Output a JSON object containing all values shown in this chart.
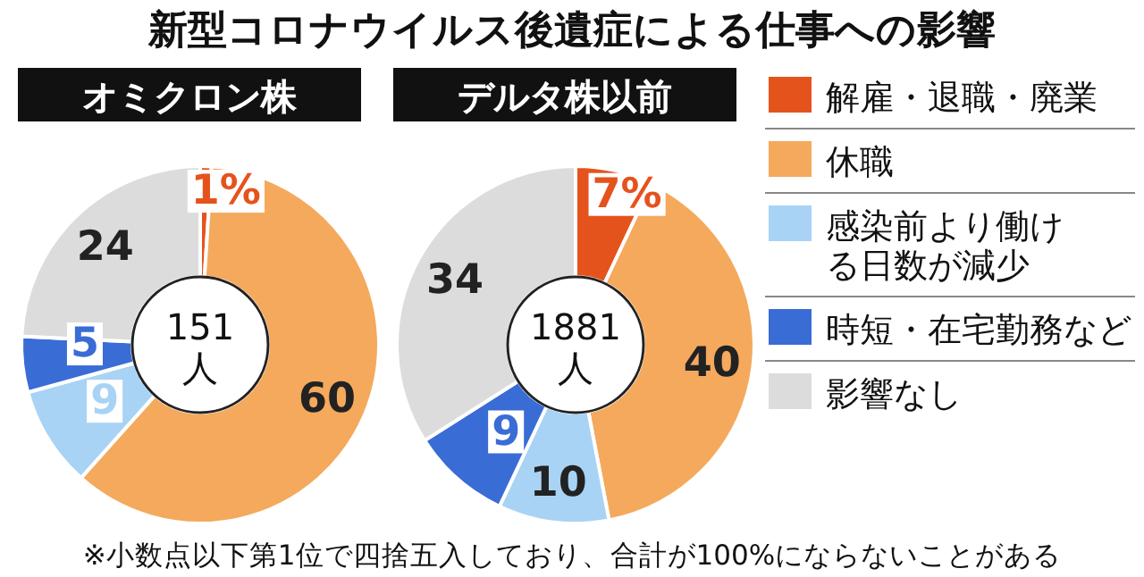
{
  "chart_data": [
    {
      "type": "donut",
      "title": "新型コロナウイルス後遺症による仕事への影響",
      "subtitle": "オミクロン株",
      "categories": [
        "解雇・退職・廃業",
        "休職",
        "感染前より働ける日数が減少",
        "時短・在宅勤務など",
        "影響なし"
      ],
      "values": [
        1,
        60,
        9,
        5,
        24
      ],
      "value_labels": [
        "1%",
        "60",
        "9",
        "5",
        "24"
      ],
      "colors": [
        "#e5531d",
        "#f5a95c",
        "#a8d3f5",
        "#3a6cd6",
        "#dcdcdc"
      ],
      "annotations": [
        "151人"
      ],
      "legend": "right"
    },
    {
      "type": "donut",
      "subtitle": "デルタ株以前",
      "categories": [
        null,
        null,
        null,
        null,
        null
      ],
      "values": [
        7,
        40,
        10,
        9,
        34
      ],
      "value_labels": [
        "7%",
        "40",
        "10",
        "9",
        "34"
      ],
      "colors": [
        "#e5531d",
        "#f5a95c",
        "#a8d3f5",
        "#3a6cd6",
        "#dcdcdc"
      ],
      "annotations": [
        "1881人",
        "※小数点以下第1位で四捨五入しており、合計が100%にならないことがある"
      ]
    }
  ]
}
